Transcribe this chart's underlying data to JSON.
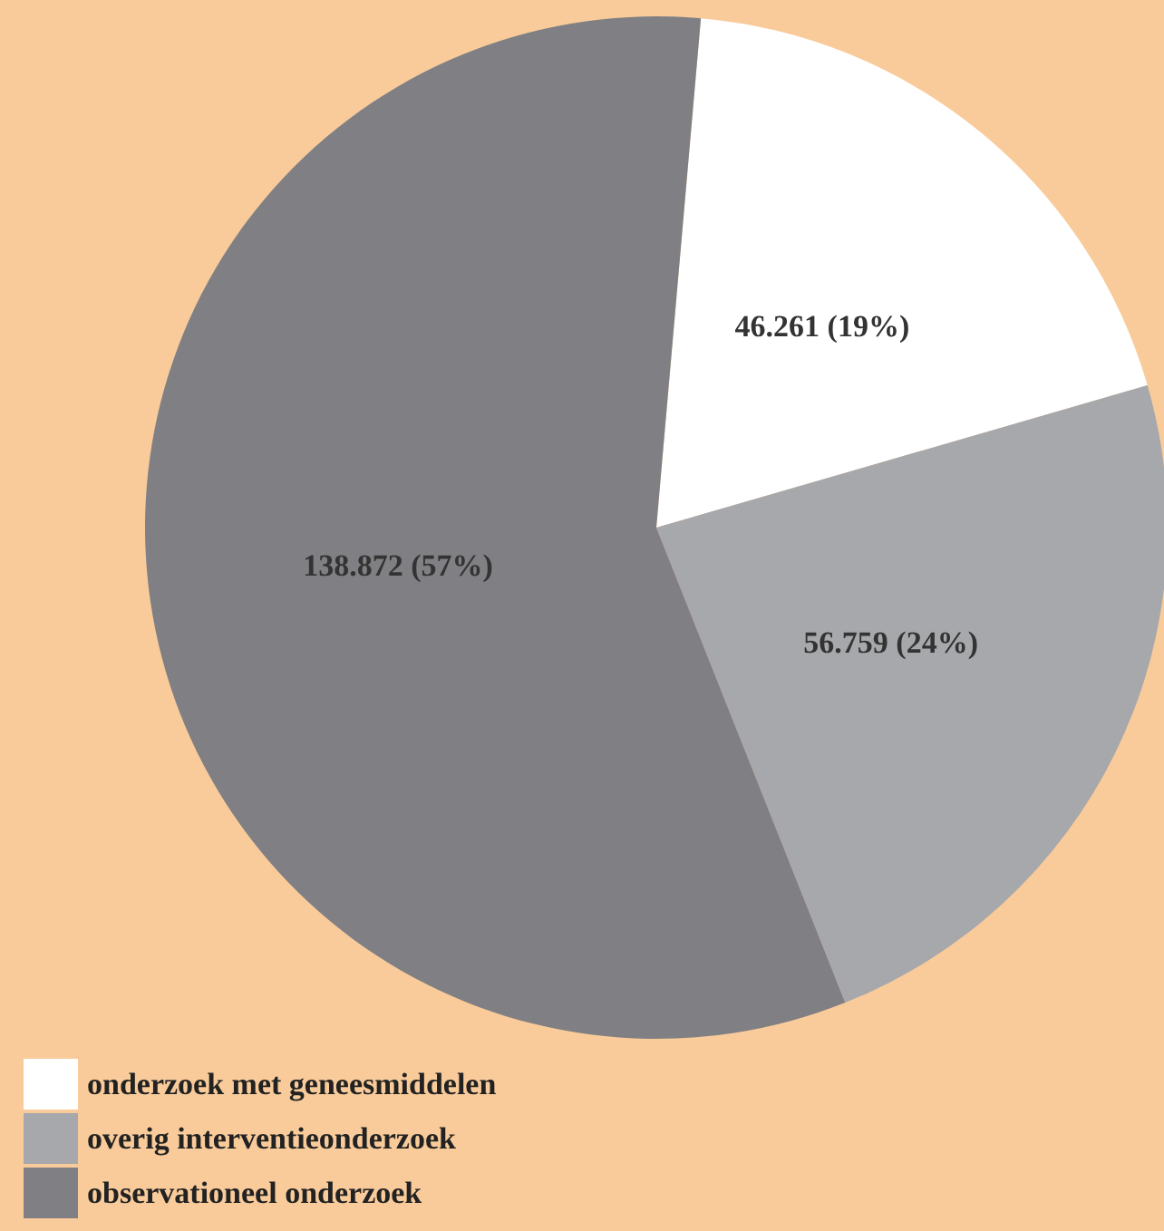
{
  "chart_data": {
    "type": "pie",
    "categories": [
      "onderzoek met geneesmiddelen",
      "overig interventieonderzoek",
      "observationeel onderzoek"
    ],
    "values": [
      46261,
      56759,
      138872
    ],
    "colors": [
      "#ffffff",
      "#a7a8ab",
      "#808084"
    ],
    "value_labels": [
      "46.261 (19%)",
      "56.759 (24%)",
      "138.872 (57%)"
    ],
    "legend": "bottom left"
  }
}
